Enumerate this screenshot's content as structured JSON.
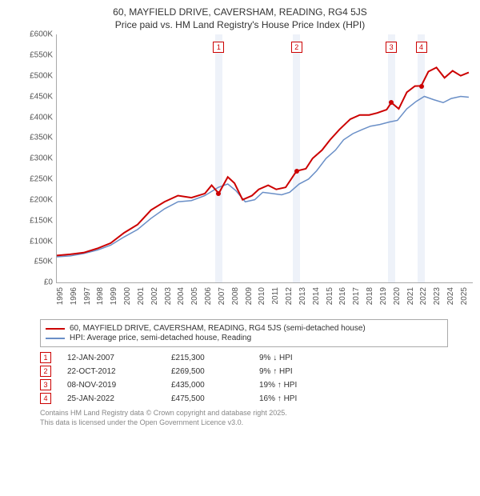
{
  "title_line1": "60, MAYFIELD DRIVE, CAVERSHAM, READING, RG4 5JS",
  "title_line2": "Price paid vs. HM Land Registry's House Price Index (HPI)",
  "chart": {
    "type": "line",
    "background_color": "#ffffff",
    "grid_color": "#e0e0e0",
    "xlim": [
      1995,
      2025.9
    ],
    "ylim": [
      0,
      600000
    ],
    "ytick_step": 50000,
    "yticks": [
      "£0",
      "£50K",
      "£100K",
      "£150K",
      "£200K",
      "£250K",
      "£300K",
      "£350K",
      "£400K",
      "£450K",
      "£500K",
      "£550K",
      "£600K"
    ],
    "xticks": [
      1995,
      1996,
      1997,
      1998,
      1999,
      2000,
      2001,
      2002,
      2003,
      2004,
      2005,
      2006,
      2007,
      2008,
      2009,
      2010,
      2011,
      2012,
      2013,
      2014,
      2015,
      2016,
      2017,
      2018,
      2019,
      2020,
      2021,
      2022,
      2023,
      2024,
      2025
    ],
    "sale_bands": [
      {
        "x": 2007.03,
        "label": "1"
      },
      {
        "x": 2012.81,
        "label": "2"
      },
      {
        "x": 2019.85,
        "label": "3"
      },
      {
        "x": 2022.07,
        "label": "4"
      }
    ],
    "band_width_years": 0.55,
    "band_color": "#e2eaf5",
    "marker_top_y": 570000,
    "series": [
      {
        "name": "property",
        "color": "#cc0000",
        "width": 2,
        "points": [
          [
            1995,
            65000
          ],
          [
            1996,
            68000
          ],
          [
            1997,
            72000
          ],
          [
            1998,
            82000
          ],
          [
            1999,
            95000
          ],
          [
            2000,
            120000
          ],
          [
            2001,
            140000
          ],
          [
            2002,
            175000
          ],
          [
            2003,
            195000
          ],
          [
            2004,
            210000
          ],
          [
            2005,
            205000
          ],
          [
            2006,
            215000
          ],
          [
            2006.5,
            235000
          ],
          [
            2007.03,
            215300
          ],
          [
            2007.7,
            255000
          ],
          [
            2008.2,
            240000
          ],
          [
            2008.8,
            200000
          ],
          [
            2009.5,
            210000
          ],
          [
            2010,
            225000
          ],
          [
            2010.7,
            235000
          ],
          [
            2011.3,
            225000
          ],
          [
            2012,
            230000
          ],
          [
            2012.81,
            269500
          ],
          [
            2013.5,
            275000
          ],
          [
            2014,
            300000
          ],
          [
            2014.7,
            320000
          ],
          [
            2015.3,
            345000
          ],
          [
            2016,
            370000
          ],
          [
            2016.8,
            395000
          ],
          [
            2017.5,
            405000
          ],
          [
            2018.2,
            405000
          ],
          [
            2018.8,
            410000
          ],
          [
            2019.5,
            418000
          ],
          [
            2019.85,
            435000
          ],
          [
            2020.4,
            420000
          ],
          [
            2021,
            460000
          ],
          [
            2021.6,
            475000
          ],
          [
            2022.07,
            475500
          ],
          [
            2022.6,
            510000
          ],
          [
            2023.2,
            520000
          ],
          [
            2023.8,
            495000
          ],
          [
            2024.4,
            512000
          ],
          [
            2025,
            500000
          ],
          [
            2025.6,
            508000
          ]
        ]
      },
      {
        "name": "hpi",
        "color": "#6a8fc7",
        "width": 1.5,
        "points": [
          [
            1995,
            62000
          ],
          [
            1996,
            64000
          ],
          [
            1997,
            70000
          ],
          [
            1998,
            78000
          ],
          [
            1999,
            90000
          ],
          [
            2000,
            110000
          ],
          [
            2001,
            128000
          ],
          [
            2002,
            155000
          ],
          [
            2003,
            178000
          ],
          [
            2004,
            195000
          ],
          [
            2005,
            198000
          ],
          [
            2006,
            210000
          ],
          [
            2007,
            230000
          ],
          [
            2007.7,
            238000
          ],
          [
            2008.3,
            222000
          ],
          [
            2009,
            195000
          ],
          [
            2009.7,
            200000
          ],
          [
            2010.3,
            218000
          ],
          [
            2011,
            215000
          ],
          [
            2011.7,
            212000
          ],
          [
            2012.3,
            218000
          ],
          [
            2013,
            238000
          ],
          [
            2013.7,
            250000
          ],
          [
            2014.3,
            270000
          ],
          [
            2015,
            300000
          ],
          [
            2015.7,
            320000
          ],
          [
            2016.3,
            345000
          ],
          [
            2017,
            360000
          ],
          [
            2017.7,
            370000
          ],
          [
            2018.3,
            378000
          ],
          [
            2019,
            382000
          ],
          [
            2019.7,
            388000
          ],
          [
            2020.3,
            392000
          ],
          [
            2021,
            420000
          ],
          [
            2021.7,
            438000
          ],
          [
            2022.3,
            450000
          ],
          [
            2023,
            442000
          ],
          [
            2023.7,
            435000
          ],
          [
            2024.3,
            445000
          ],
          [
            2025,
            450000
          ],
          [
            2025.6,
            448000
          ]
        ]
      }
    ],
    "sale_points": [
      {
        "x": 2007.03,
        "y": 215300
      },
      {
        "x": 2012.81,
        "y": 269500
      },
      {
        "x": 2019.85,
        "y": 435000
      },
      {
        "x": 2022.07,
        "y": 475500
      }
    ]
  },
  "legend": {
    "items": [
      {
        "color": "#cc0000",
        "label": "60, MAYFIELD DRIVE, CAVERSHAM, READING, RG4 5JS (semi-detached house)"
      },
      {
        "color": "#6a8fc7",
        "label": "HPI: Average price, semi-detached house, Reading"
      }
    ]
  },
  "sales": [
    {
      "n": "1",
      "date": "12-JAN-2007",
      "price": "£215,300",
      "pct": "9% ↓ HPI"
    },
    {
      "n": "2",
      "date": "22-OCT-2012",
      "price": "£269,500",
      "pct": "9% ↑ HPI"
    },
    {
      "n": "3",
      "date": "08-NOV-2019",
      "price": "£435,000",
      "pct": "19% ↑ HPI"
    },
    {
      "n": "4",
      "date": "25-JAN-2022",
      "price": "£475,500",
      "pct": "16% ↑ HPI"
    }
  ],
  "footer_line1": "Contains HM Land Registry data © Crown copyright and database right 2025.",
  "footer_line2": "This data is licensed under the Open Government Licence v3.0."
}
